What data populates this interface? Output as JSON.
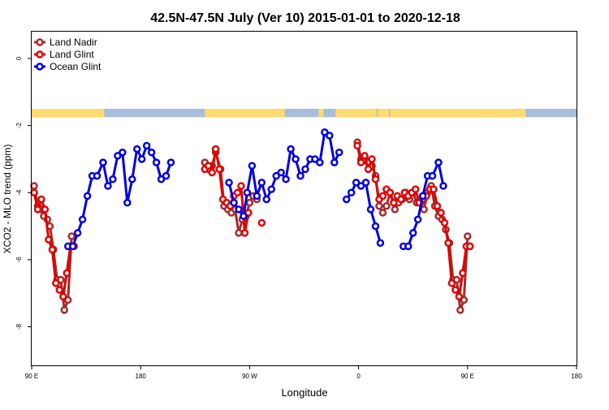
{
  "chart_data": {
    "type": "line",
    "title": "42.5N-47.5N July (Ver 10)   2015-01-01 to 2020-12-18",
    "xlabel": "Longitude",
    "ylabel": "XCO2 - MLO trend (ppm)",
    "x_ticks": [
      {
        "value": 90,
        "label": "90 E"
      },
      {
        "value": 180,
        "label": "180"
      },
      {
        "value": 270,
        "label": "90 W"
      },
      {
        "value": 360,
        "label": "0"
      },
      {
        "value": 450,
        "label": "90 E"
      },
      {
        "value": 540,
        "label": "180"
      }
    ],
    "xlim": [
      90,
      540
    ],
    "y_ticks": [
      0,
      -2,
      -4,
      -6,
      -8
    ],
    "ylim": [
      -9.15,
      0.8
    ],
    "legend_position": "top-left",
    "grid": false,
    "land_ocean_band": {
      "y_range": [
        -1.75,
        -1.5
      ],
      "land_color": "#fedb71",
      "ocean_color": "#a7bddb",
      "land_lon_spans": [
        [
          90,
          146
        ],
        [
          145,
          147
        ],
        [
          146,
          149
        ],
        [
          146,
          148
        ],
        [
          145,
          146
        ],
        [
          147,
          148
        ],
        [
          146,
          150
        ],
        [
          144,
          146
        ],
        [
          145,
          147
        ],
        [
          147,
          148
        ],
        [
          233,
          299
        ],
        [
          236,
          238
        ],
        [
          237,
          239
        ],
        [
          238,
          240
        ],
        [
          239,
          240
        ],
        [
          240,
          241
        ],
        [
          241,
          242
        ],
        [
          239,
          241
        ],
        [
          236,
          238
        ],
        [
          327,
          330
        ],
        [
          328,
          330
        ],
        [
          329,
          331
        ],
        [
          341,
          375
        ],
        [
          386,
          496
        ],
        [
          380,
          383
        ],
        [
          381,
          384
        ],
        [
          382,
          385
        ],
        [
          379,
          382
        ],
        [
          376,
          379
        ],
        [
          377,
          380
        ],
        [
          378,
          381
        ],
        [
          390,
          393
        ],
        [
          387,
          390
        ],
        [
          388,
          391
        ],
        [
          389,
          392
        ],
        [
          391,
          394
        ],
        [
          392,
          395
        ],
        [
          395,
          398
        ],
        [
          399,
          402
        ],
        [
          403,
          406
        ],
        [
          410,
          413
        ],
        [
          420,
          423
        ],
        [
          430,
          433
        ],
        [
          440,
          443
        ],
        [
          450,
          453
        ],
        [
          458,
          461
        ],
        [
          464,
          467
        ],
        [
          470,
          473
        ],
        [
          476,
          479
        ],
        [
          482,
          485
        ],
        [
          488,
          491
        ],
        [
          492,
          495
        ],
        [
          494,
          496
        ],
        [
          495,
          498
        ]
      ]
    },
    "series": [
      {
        "name": "Land Nadir",
        "color": "#a52a2a",
        "segments": [
          [
            [
              92,
              -3.8
            ],
            [
              95,
              -4.4
            ],
            [
              98,
              -4.5
            ],
            [
              100,
              -4.7
            ],
            [
              103,
              -4.8
            ],
            [
              105,
              -5.0
            ],
            [
              108,
              -5.7
            ],
            [
              111,
              -6.6
            ],
            [
              114,
              -6.6
            ],
            [
              117,
              -7.5
            ],
            [
              120,
              -7.2
            ],
            [
              123,
              -5.3
            ]
          ],
          [
            [
              233,
              -3.1
            ],
            [
              236,
              -3.3
            ],
            [
              239,
              -3.2
            ],
            [
              242,
              -2.8
            ],
            [
              246,
              -3.3
            ],
            [
              249,
              -4.4
            ],
            [
              252,
              -4.5
            ],
            [
              255,
              -4.6
            ],
            [
              258,
              -4.5
            ],
            [
              261,
              -5.2
            ],
            [
              264,
              -4.8
            ],
            [
              267,
              -4.7
            ],
            [
              270,
              -4.3
            ],
            [
              273,
              -4.1
            ],
            [
              276,
              -4.2
            ]
          ],
          [
            [
              359,
              -2.5
            ],
            [
              362,
              -3.0
            ],
            [
              365,
              -3.0
            ],
            [
              368,
              -3.1
            ],
            [
              371,
              -3.2
            ],
            [
              374,
              -3.5
            ],
            [
              377,
              -4.4
            ],
            [
              380,
              -4.6
            ],
            [
              383,
              -4.4
            ],
            [
              386,
              -4.0
            ],
            [
              390,
              -4.5
            ],
            [
              393,
              -4.3
            ],
            [
              396,
              -4.2
            ],
            [
              399,
              -4.0
            ],
            [
              402,
              -4.2
            ],
            [
              405,
              -4.0
            ],
            [
              408,
              -4.3
            ],
            [
              411,
              -4.3
            ],
            [
              414,
              -4.5
            ],
            [
              417,
              -4.0
            ],
            [
              420,
              -3.8
            ],
            [
              423,
              -4.4
            ],
            [
              426,
              -4.7
            ],
            [
              429,
              -4.8
            ],
            [
              432,
              -5.1
            ],
            [
              435,
              -5.5
            ],
            [
              438,
              -6.6
            ],
            [
              441,
              -6.6
            ],
            [
              444,
              -7.5
            ],
            [
              447,
              -7.2
            ],
            [
              450,
              -5.3
            ]
          ]
        ]
      },
      {
        "name": "Land Glint",
        "color": "#e00000",
        "segments": [
          [
            [
              92,
              -4.0
            ],
            [
              95,
              -4.5
            ],
            [
              98,
              -4.2
            ],
            [
              101,
              -4.5
            ],
            [
              104,
              -5.4
            ],
            [
              107,
              -5.7
            ],
            [
              110,
              -6.7
            ],
            [
              113,
              -6.9
            ],
            [
              116,
              -7.1
            ],
            [
              119,
              -6.4
            ],
            [
              122,
              -5.6
            ],
            [
              125,
              -5.6
            ]
          ],
          [
            [
              233,
              -3.3
            ],
            [
              236,
              -3.2
            ],
            [
              239,
              -3.4
            ],
            [
              242,
              -2.7
            ],
            [
              245,
              -3.3
            ],
            [
              248,
              -4.2
            ],
            [
              251,
              -4.3
            ],
            [
              254,
              -4.4
            ],
            [
              257,
              -4.1
            ],
            [
              260,
              -4.0
            ],
            [
              263,
              -3.8
            ],
            [
              266,
              -5.2
            ],
            [
              269,
              -4.6
            ]
          ],
          [
            [
              280,
              -4.9
            ]
          ],
          [
            [
              359,
              -2.6
            ],
            [
              362,
              -3.1
            ],
            [
              365,
              -2.9
            ],
            [
              368,
              -3.3
            ],
            [
              371,
              -3.0
            ],
            [
              374,
              -3.6
            ],
            [
              377,
              -4.2
            ],
            [
              380,
              -4.1
            ],
            [
              383,
              -3.9
            ],
            [
              386,
              -4.0
            ],
            [
              389,
              -4.3
            ],
            [
              392,
              -4.1
            ],
            [
              395,
              -4.2
            ],
            [
              398,
              -4.0
            ],
            [
              401,
              -4.1
            ],
            [
              404,
              -4.0
            ],
            [
              407,
              -3.9
            ],
            [
              410,
              -4.3
            ],
            [
              413,
              -4.2
            ],
            [
              416,
              -4.1
            ],
            [
              419,
              -3.9
            ],
            [
              422,
              -3.9
            ],
            [
              425,
              -4.4
            ],
            [
              428,
              -4.6
            ],
            [
              431,
              -4.9
            ],
            [
              434,
              -5.5
            ],
            [
              437,
              -6.7
            ],
            [
              440,
              -6.9
            ],
            [
              443,
              -7.1
            ],
            [
              446,
              -6.4
            ],
            [
              449,
              -5.6
            ],
            [
              452,
              -5.6
            ]
          ]
        ]
      },
      {
        "name": "Ocean Glint",
        "color": "#0000e0",
        "segments": [
          [
            [
              120,
              -5.6
            ],
            [
              124,
              -5.6
            ],
            [
              128,
              -5.2
            ],
            [
              132,
              -4.8
            ],
            [
              136,
              -4.1
            ],
            [
              140,
              -3.5
            ],
            [
              144,
              -3.5
            ],
            [
              149,
              -3.1
            ],
            [
              153,
              -3.8
            ],
            [
              157,
              -3.6
            ],
            [
              161,
              -2.9
            ],
            [
              165,
              -2.8
            ],
            [
              169,
              -4.3
            ],
            [
              173,
              -3.6
            ],
            [
              177,
              -2.7
            ],
            [
              181,
              -3.0
            ],
            [
              185,
              -2.6
            ],
            [
              189,
              -2.8
            ],
            [
              193,
              -3.1
            ],
            [
              197,
              -3.6
            ],
            [
              201,
              -3.5
            ],
            [
              205,
              -3.1
            ]
          ],
          [
            [
              253,
              -3.7
            ],
            [
              257,
              -4.3
            ],
            [
              261,
              -4.5
            ],
            [
              265,
              -4.7
            ],
            [
              268,
              -4.0
            ],
            [
              272,
              -3.2
            ],
            [
              276,
              -4.1
            ],
            [
              280,
              -3.7
            ],
            [
              284,
              -4.2
            ],
            [
              288,
              -3.9
            ],
            [
              292,
              -3.5
            ],
            [
              296,
              -3.4
            ],
            [
              300,
              -3.6
            ],
            [
              304,
              -2.7
            ],
            [
              308,
              -3.0
            ],
            [
              312,
              -3.5
            ],
            [
              316,
              -3.3
            ],
            [
              320,
              -3.0
            ],
            [
              324,
              -3.0
            ],
            [
              328,
              -3.1
            ],
            [
              332,
              -2.2
            ],
            [
              336,
              -2.3
            ],
            [
              340,
              -3.1
            ],
            [
              344,
              -2.8
            ]
          ],
          [
            [
              350,
              -4.2
            ],
            [
              354,
              -4.0
            ],
            [
              358,
              -3.7
            ],
            [
              362,
              -3.8
            ],
            [
              366,
              -3.7
            ],
            [
              370,
              -4.5
            ],
            [
              374,
              -5.0
            ],
            [
              378,
              -5.5
            ]
          ],
          [
            [
              397,
              -5.6
            ],
            [
              401,
              -5.6
            ],
            [
              405,
              -5.2
            ],
            [
              409,
              -4.8
            ],
            [
              413,
              -4.1
            ],
            [
              417,
              -3.5
            ],
            [
              421,
              -3.5
            ],
            [
              426,
              -3.1
            ],
            [
              430,
              -3.8
            ]
          ]
        ]
      }
    ]
  }
}
